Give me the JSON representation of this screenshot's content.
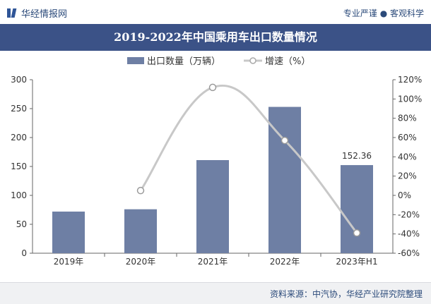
{
  "header": {
    "brand": "华经情报网",
    "tagline": "专业严谨 ● 客观科学"
  },
  "chart_data": {
    "type": "bar",
    "title": "2019-2022年中国乘用车出口数量情况",
    "categories": [
      "2019年",
      "2020年",
      "2021年",
      "2022年",
      "2023年H1"
    ],
    "series": [
      {
        "name": "出口数量（万辆）",
        "type": "bar",
        "axis": "left",
        "color": "#6e7fa4",
        "values": [
          72,
          76,
          161,
          253,
          152.36
        ]
      },
      {
        "name": "增速（%）",
        "type": "line",
        "axis": "right",
        "color": "#c8c8c8",
        "values": [
          null,
          5,
          112,
          57,
          -39
        ]
      }
    ],
    "data_labels": [
      {
        "category_index": 4,
        "text": "152.36"
      }
    ],
    "y_left": {
      "min": 0,
      "max": 300,
      "ticks": [
        0,
        50,
        100,
        150,
        200,
        250,
        300
      ]
    },
    "y_right": {
      "min": -60,
      "max": 120,
      "ticks": [
        "-60%",
        "-40%",
        "-20%",
        "0%",
        "20%",
        "40%",
        "60%",
        "80%",
        "100%",
        "120%"
      ]
    },
    "legend": "top-center",
    "grid": false
  },
  "footer": {
    "source": "资料来源：中汽协，华经产业研究院整理"
  }
}
